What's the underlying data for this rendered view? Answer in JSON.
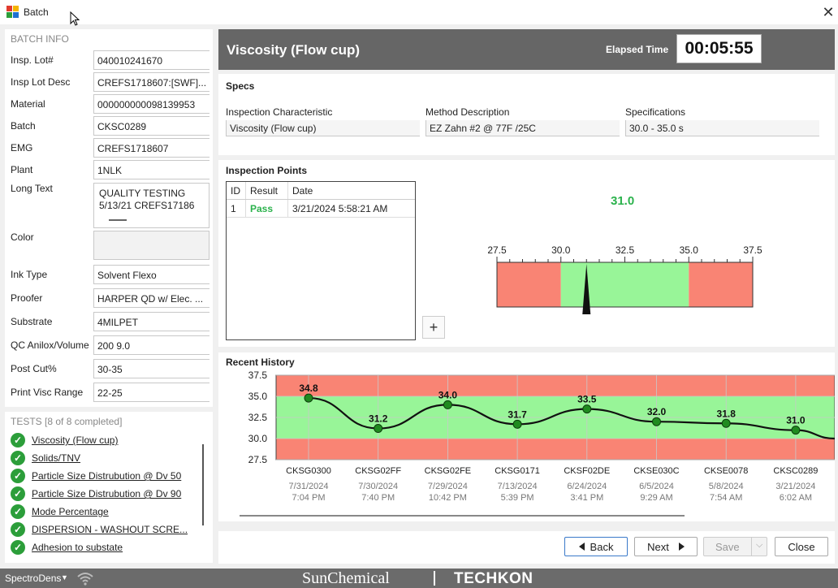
{
  "window": {
    "title": "Batch"
  },
  "batch_info": {
    "title": "BATCH INFO",
    "fields": [
      {
        "label": "Insp. Lot#",
        "value": "040010241670"
      },
      {
        "label": "Insp Lot Desc",
        "value": "CREFS1718607:[SWF]..."
      },
      {
        "label": "Material",
        "value": "000000000098139953"
      },
      {
        "label": "Batch",
        "value": "CKSC0289"
      },
      {
        "label": "EMG",
        "value": "CREFS1718607"
      },
      {
        "label": "Plant",
        "value": "1NLK"
      }
    ],
    "long_text": {
      "label": "Long Text",
      "line1": "QUALITY TESTING",
      "line2": "5/13/21 CREFS17186"
    },
    "color": {
      "label": "Color",
      "value": ""
    },
    "fields2": [
      {
        "label": "Ink Type",
        "value": "Solvent Flexo"
      },
      {
        "label": "Proofer",
        "value": "HARPER QD w/ Elec. ..."
      },
      {
        "label": "Substrate",
        "value": "4MILPET"
      },
      {
        "label": "QC Anilox/Volume",
        "value": "200 9.0"
      },
      {
        "label": "Post Cut%",
        "value": "30-35"
      },
      {
        "label": "Print Visc Range",
        "value": "22-25"
      }
    ]
  },
  "tests": {
    "title": "TESTS [8 of 8 completed]",
    "items": [
      "Viscosity (Flow cup)",
      "Solids/TNV",
      "Particle Size Distrubution @ Dv 50",
      "Particle Size Distrubution @ Dv 90",
      "Mode Percentage",
      "DISPERSION - WASHOUT SCRE...",
      "Adhesion to substate"
    ]
  },
  "header": {
    "title": "Viscosity (Flow cup)",
    "elapsed_label": "Elapsed Time",
    "elapsed_value": "00:05:55"
  },
  "specs": {
    "title": "Specs",
    "columns": [
      {
        "label": "Inspection Characteristic",
        "value": "Viscosity (Flow cup)"
      },
      {
        "label": "Method Description",
        "value": "EZ Zahn #2 @ 77F /25C"
      },
      {
        "label": "Specifications",
        "value": "30.0 - 35.0 s"
      }
    ]
  },
  "inspection_points": {
    "title": "Inspection Points",
    "headers": [
      "ID",
      "Result",
      "Date"
    ],
    "rows": [
      {
        "id": "1",
        "result": "Pass",
        "date": "3/21/2024 5:58:21 AM"
      }
    ],
    "add_label": "+"
  },
  "gauge": {
    "current_value": "31.0",
    "value": 31.0,
    "min": 27.5,
    "max": 37.5,
    "spec_low": 30.0,
    "spec_high": 35.0,
    "ticks": [
      "27.5",
      "30.0",
      "32.5",
      "35.0",
      "37.5"
    ],
    "colors": {
      "in_spec": "#98f598",
      "out_spec": "#f98474"
    }
  },
  "history": {
    "title": "Recent History",
    "y_ticks": [
      "37.5",
      "35.0",
      "32.5",
      "30.0",
      "27.5"
    ],
    "points": [
      {
        "batch": "CKSG0300",
        "date": "7/31/2024",
        "time": "7:04 PM",
        "value": 34.8,
        "label": "34.8"
      },
      {
        "batch": "CKSG02FF",
        "date": "7/30/2024",
        "time": "7:40 PM",
        "value": 31.2,
        "label": "31.2"
      },
      {
        "batch": "CKSG02FE",
        "date": "7/29/2024",
        "time": "10:42 PM",
        "value": 34.0,
        "label": "34.0"
      },
      {
        "batch": "CKSG0171",
        "date": "7/13/2024",
        "time": "5:39 PM",
        "value": 31.7,
        "label": "31.7"
      },
      {
        "batch": "CKSF02DE",
        "date": "6/24/2024",
        "time": "3:41 PM",
        "value": 33.5,
        "label": "33.5"
      },
      {
        "batch": "CKSE030C",
        "date": "6/5/2024",
        "time": "9:29 AM",
        "value": 32.0,
        "label": "32.0"
      },
      {
        "batch": "CKSE0078",
        "date": "5/8/2024",
        "time": "7:54 AM",
        "value": 31.8,
        "label": "31.8"
      },
      {
        "batch": "CKSC0289",
        "date": "3/21/2024",
        "time": "6:02 AM",
        "value": 31.0,
        "label": "31.0"
      }
    ]
  },
  "buttons": {
    "back": "Back",
    "next": "Next",
    "save": "Save",
    "close": "Close"
  },
  "statusbar": {
    "device": "SpectroDens",
    "brand1": "SunChemical",
    "brand2": "TECHKON"
  }
}
